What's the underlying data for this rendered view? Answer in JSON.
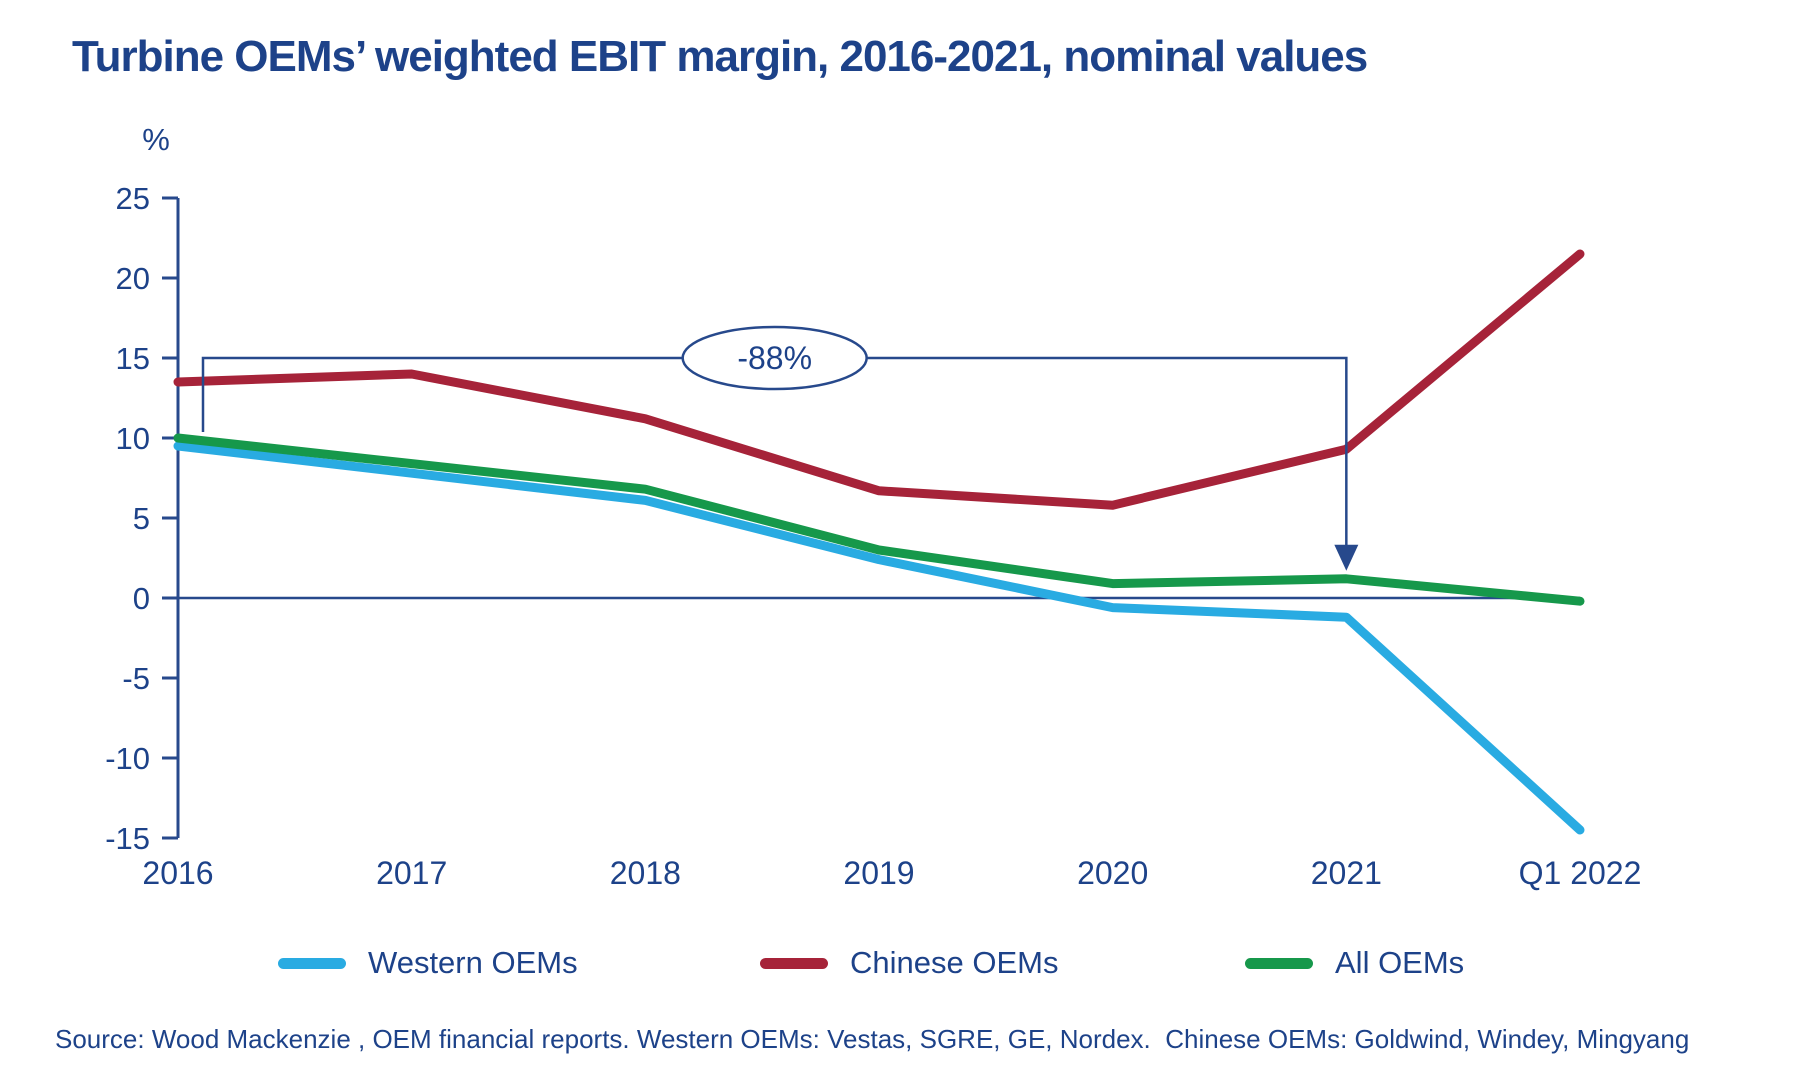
{
  "title": "Turbine OEMs’ weighted EBIT margin, 2016-2021, nominal values",
  "source": "Source: Wood Mackenzie , OEM financial reports. Western OEMs: Vestas, SGRE, GE, Nordex.  Chinese OEMs: Goldwind, Windey, Mingyang",
  "colors": {
    "axis": "#27498C",
    "text": "#1D4289",
    "western": "#29ABE2",
    "chinese": "#A62339",
    "all": "#16984B"
  },
  "chart_data": {
    "type": "line",
    "categories": [
      "2016",
      "2017",
      "2018",
      "2019",
      "2020",
      "2021",
      "Q1 2022"
    ],
    "series": [
      {
        "name": "Western OEMs",
        "color": "#29ABE2",
        "values": [
          9.5,
          7.8,
          6.1,
          2.4,
          -0.6,
          -1.2,
          -14.5
        ]
      },
      {
        "name": "Chinese OEMs",
        "color": "#A62339",
        "values": [
          13.5,
          14.0,
          11.2,
          6.7,
          5.8,
          9.3,
          21.5
        ]
      },
      {
        "name": "All OEMs",
        "color": "#16984B",
        "values": [
          10.0,
          8.4,
          6.8,
          3.0,
          0.9,
          1.2,
          -0.2
        ]
      }
    ],
    "title": "Turbine OEMs’ weighted EBIT margin, 2016-2021, nominal values",
    "xlabel": "",
    "ylabel": "%",
    "ylim": [
      -15,
      25
    ],
    "ytick_step": 5,
    "yticks": [
      25,
      20,
      15,
      10,
      5,
      0,
      -5,
      -10,
      -15
    ],
    "grid": false,
    "legend_position": "bottom",
    "annotation": {
      "text": "-88%",
      "from_year": "2016",
      "to_year": "2021",
      "level": 15,
      "target_series": "All OEMs"
    }
  }
}
